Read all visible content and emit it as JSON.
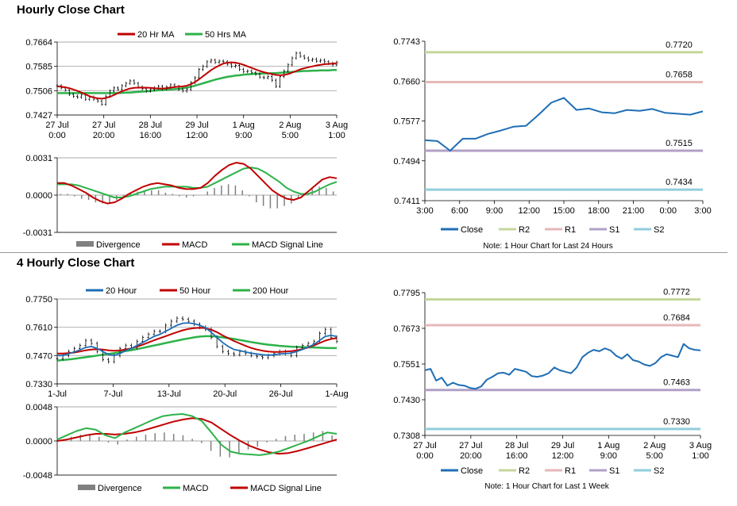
{
  "titles": {
    "hourly": "Hourly Close Chart",
    "four_hourly": "4 Hourly Close Chart"
  },
  "colors": {
    "red": "#c00000",
    "green": "#2db24a",
    "blue": "#1f6eb5",
    "r2": "#c4d79b",
    "r1": "#e6b8b7",
    "s1": "#b1a0c7",
    "s2": "#92cddc",
    "hist": "#808080",
    "grid": "#8c8c8c"
  },
  "chart_data": [
    {
      "id": "hourly_price",
      "type": "line",
      "ylim": [
        0.7427,
        0.7664
      ],
      "y_ticks": [
        "0.7664",
        "0.7585",
        "0.7506",
        "0.7427"
      ],
      "x_ticks": [
        [
          "27 Jul",
          "0:00"
        ],
        [
          "27 Jul",
          "20:00"
        ],
        [
          "28 Jul",
          "16:00"
        ],
        [
          "29 Jul",
          "12:00"
        ],
        [
          "1 Aug",
          "9:00"
        ],
        [
          "2 Aug",
          "5:00"
        ],
        [
          "3 Aug",
          "1:00"
        ]
      ],
      "legend": [
        "20 Hr MA",
        "50 Hrs MA"
      ],
      "series": [
        {
          "name": "Close",
          "values": [
            0.7522,
            0.7515,
            0.7508,
            0.7494,
            0.7488,
            0.7485,
            0.7492,
            0.7478,
            0.7485,
            0.7478,
            0.7472,
            0.7462,
            0.7488,
            0.7505,
            0.7515,
            0.751,
            0.7522,
            0.753,
            0.7538,
            0.753,
            0.7518,
            0.7512,
            0.7505,
            0.751,
            0.7515,
            0.752,
            0.7512,
            0.7518,
            0.7525,
            0.752,
            0.751,
            0.7505,
            0.751,
            0.7532,
            0.7548,
            0.7575,
            0.7585,
            0.76,
            0.7605,
            0.7598,
            0.7602,
            0.76,
            0.7592,
            0.7585,
            0.7588,
            0.7575,
            0.7568,
            0.757,
            0.7565,
            0.756,
            0.755,
            0.7548,
            0.7552,
            0.754,
            0.752,
            0.7552,
            0.757,
            0.759,
            0.7612,
            0.7628,
            0.7618,
            0.7612,
            0.7605,
            0.7608,
            0.7602,
            0.7605,
            0.76,
            0.7595,
            0.759,
            0.7598
          ]
        },
        {
          "name": "20 Hr MA",
          "values": [
            0.752,
            0.7519,
            0.7517,
            0.7514,
            0.751,
            0.7505,
            0.75,
            0.7494,
            0.7488,
            0.7484,
            0.7481,
            0.748,
            0.7482,
            0.7486,
            0.7492,
            0.7498,
            0.7504,
            0.7509,
            0.7513,
            0.7515,
            0.7516,
            0.7516,
            0.7516,
            0.7515,
            0.7514,
            0.7513,
            0.7513,
            0.7514,
            0.7516,
            0.7518,
            0.7519,
            0.752,
            0.7522,
            0.7527,
            0.7534,
            0.7543,
            0.7553,
            0.7563,
            0.7573,
            0.7581,
            0.7588,
            0.7594,
            0.7597,
            0.7598,
            0.7597,
            0.7594,
            0.759,
            0.7585,
            0.758,
            0.7575,
            0.757,
            0.7566,
            0.7563,
            0.756,
            0.7557,
            0.7556,
            0.7557,
            0.756,
            0.7565,
            0.757,
            0.7575,
            0.7579,
            0.7582,
            0.7585,
            0.7588,
            0.759,
            0.7592,
            0.7593,
            0.7594,
            0.7595
          ]
        },
        {
          "name": "50 Hrs MA",
          "values": [
            0.7498,
            0.7498,
            0.7498,
            0.7498,
            0.7498,
            0.7498,
            0.7498,
            0.7498,
            0.7498,
            0.7498,
            0.7498,
            0.7498,
            0.7498,
            0.7498,
            0.7498,
            0.7498,
            0.7499,
            0.75,
            0.75,
            0.7501,
            0.7502,
            0.7503,
            0.7504,
            0.7505,
            0.7506,
            0.7507,
            0.7508,
            0.7509,
            0.751,
            0.7511,
            0.7512,
            0.7514,
            0.7516,
            0.7519,
            0.7522,
            0.7526,
            0.753,
            0.7534,
            0.7538,
            0.7542,
            0.7545,
            0.7548,
            0.7551,
            0.7553,
            0.7555,
            0.7556,
            0.7558,
            0.7559,
            0.756,
            0.7561,
            0.7561,
            0.7562,
            0.7562,
            0.7563,
            0.7563,
            0.7564,
            0.7565,
            0.7566,
            0.7567,
            0.7568,
            0.7569,
            0.757,
            0.757,
            0.7571,
            0.7571,
            0.7572,
            0.7572,
            0.7572,
            0.7573,
            0.7573
          ]
        }
      ]
    },
    {
      "id": "hourly_macd",
      "type": "line",
      "ylim": [
        -0.0031,
        0.0031
      ],
      "y_ticks": [
        "0.0031",
        "0.0000",
        "-0.0031"
      ],
      "legend": [
        "Divergence",
        "MACD",
        "MACD Signal Line"
      ],
      "series": [
        {
          "name": "MACD",
          "values": [
            0.001,
            0.001,
            0.0008,
            0.0005,
            0.0002,
            -0.0002,
            -0.0005,
            -0.0007,
            -0.0006,
            -0.0003,
            0.0001,
            0.0004,
            0.0007,
            0.0009,
            0.001,
            0.0009,
            0.0008,
            0.0006,
            0.0005,
            0.0005,
            0.0006,
            0.001,
            0.0016,
            0.0021,
            0.0025,
            0.0027,
            0.0026,
            0.0022,
            0.0016,
            0.001,
            0.0004,
            0.0,
            -0.0003,
            -0.0004,
            -0.0002,
            0.0003,
            0.0008,
            0.0013,
            0.0015,
            0.0014
          ]
        },
        {
          "name": "MACD Signal Line",
          "values": [
            0.0009,
            0.0009,
            0.0009,
            0.0008,
            0.0006,
            0.0004,
            0.0002,
            0.0,
            -0.0002,
            -0.0002,
            -0.0001,
            0.0001,
            0.0003,
            0.0005,
            0.0006,
            0.0007,
            0.0007,
            0.0007,
            0.0007,
            0.0006,
            0.0006,
            0.0007,
            0.001,
            0.0013,
            0.0016,
            0.0019,
            0.0022,
            0.0023,
            0.0022,
            0.0019,
            0.0015,
            0.0011,
            0.0006,
            0.0003,
            0.0001,
            0.0001,
            0.0003,
            0.0006,
            0.0009,
            0.0011
          ]
        },
        {
          "name": "Divergence",
          "values": [
            0.0001,
            0.0001,
            -0.0001,
            -0.0003,
            -0.0004,
            -0.0006,
            -0.0007,
            -0.0007,
            -0.0004,
            -0.0001,
            0.0002,
            0.0003,
            0.0004,
            0.0004,
            0.0004,
            0.0002,
            0.0001,
            -0.0001,
            -0.0002,
            -0.0001,
            0.0,
            0.0003,
            0.0006,
            0.0008,
            0.0009,
            0.0008,
            0.0004,
            -0.0001,
            -0.0006,
            -0.0009,
            -0.0011,
            -0.0011,
            -0.0009,
            -0.0007,
            -0.0003,
            0.0002,
            0.0005,
            0.0007,
            0.0006,
            0.0003
          ]
        }
      ]
    },
    {
      "id": "hourly_levels",
      "type": "line",
      "ylim": [
        0.7411,
        0.7743
      ],
      "y_ticks": [
        "0.7743",
        "0.7660",
        "0.7577",
        "0.7494",
        "0.7411"
      ],
      "x_ticks": [
        "3:00",
        "6:00",
        "9:00",
        "12:00",
        "15:00",
        "18:00",
        "21:00",
        "0:00",
        "3:00"
      ],
      "legend": [
        "Close",
        "R2",
        "R1",
        "S1",
        "S2"
      ],
      "levels": {
        "R2": 0.772,
        "R1": 0.7658,
        "S1": 0.7515,
        "S2": 0.7434
      },
      "level_labels": {
        "R2": "0.7720",
        "R1": "0.7658",
        "S1": "0.7515",
        "S2": "0.7434"
      },
      "note": "Note: 1 Hour Chart for Last 24 Hours",
      "series": [
        {
          "name": "Close",
          "values": [
            0.7537,
            0.7535,
            0.7515,
            0.754,
            0.754,
            0.755,
            0.7557,
            0.7565,
            0.7567,
            0.759,
            0.7615,
            0.7625,
            0.76,
            0.7603,
            0.7595,
            0.7593,
            0.76,
            0.7598,
            0.7602,
            0.7594,
            0.7592,
            0.759,
            0.7597
          ]
        }
      ]
    },
    {
      "id": "four_hourly_price",
      "type": "line",
      "ylim": [
        0.733,
        0.775
      ],
      "y_ticks": [
        "0.7750",
        "0.7610",
        "0.7470",
        "0.7330"
      ],
      "x_ticks": [
        "1-Jul",
        "7-Jul",
        "13-Jul",
        "20-Jul",
        "26-Jul",
        "1-Aug"
      ],
      "legend": [
        "20 Hour",
        "50 Hour",
        "200 Hour"
      ],
      "series": [
        {
          "name": "Close",
          "values": [
            0.7455,
            0.747,
            0.749,
            0.7505,
            0.752,
            0.7545,
            0.753,
            0.749,
            0.745,
            0.744,
            0.747,
            0.7505,
            0.752,
            0.751,
            0.754,
            0.756,
            0.7575,
            0.759,
            0.759,
            0.762,
            0.764,
            0.7655,
            0.765,
            0.764,
            0.7625,
            0.761,
            0.76,
            0.756,
            0.7515,
            0.749,
            0.748,
            0.7475,
            0.749,
            0.748,
            0.747,
            0.7465,
            0.746,
            0.747,
            0.748,
            0.749,
            0.748,
            0.747,
            0.751,
            0.752,
            0.753,
            0.754,
            0.758,
            0.76,
            0.756,
            0.754
          ]
        },
        {
          "name": "20 Hour",
          "values": [
            0.747,
            0.747,
            0.7478,
            0.7488,
            0.7498,
            0.751,
            0.7515,
            0.7505,
            0.749,
            0.7475,
            0.747,
            0.748,
            0.7495,
            0.7505,
            0.752,
            0.7535,
            0.755,
            0.7565,
            0.7575,
            0.759,
            0.7605,
            0.762,
            0.763,
            0.7632,
            0.7628,
            0.762,
            0.7608,
            0.7585,
            0.756,
            0.7535,
            0.7515,
            0.75,
            0.7495,
            0.7488,
            0.7482,
            0.7478,
            0.7474,
            0.7472,
            0.7474,
            0.7478,
            0.748,
            0.7482,
            0.749,
            0.75,
            0.7512,
            0.7525,
            0.7545,
            0.7565,
            0.757,
            0.7565
          ]
        },
        {
          "name": "50 Hour",
          "values": [
            0.748,
            0.748,
            0.7482,
            0.7485,
            0.749,
            0.7496,
            0.75,
            0.7502,
            0.75,
            0.7496,
            0.7494,
            0.7496,
            0.75,
            0.7506,
            0.7514,
            0.7524,
            0.7535,
            0.7546,
            0.7556,
            0.7566,
            0.7576,
            0.7586,
            0.7595,
            0.7602,
            0.7606,
            0.7608,
            0.7606,
            0.7598,
            0.7586,
            0.757,
            0.7556,
            0.7542,
            0.753,
            0.7518,
            0.7508,
            0.75,
            0.7494,
            0.749,
            0.7488,
            0.7488,
            0.749,
            0.7492,
            0.7496,
            0.7502,
            0.751,
            0.752,
            0.7532,
            0.7544,
            0.7552,
            0.7556
          ]
        },
        {
          "name": "200 Hour",
          "values": [
            0.7445,
            0.7448,
            0.7451,
            0.7454,
            0.7458,
            0.7462,
            0.7466,
            0.747,
            0.7474,
            0.7478,
            0.7482,
            0.7487,
            0.7492,
            0.7497,
            0.7502,
            0.7508,
            0.7514,
            0.752,
            0.7526,
            0.7532,
            0.7538,
            0.7544,
            0.755,
            0.7555,
            0.756,
            0.7564,
            0.7566,
            0.7566,
            0.7564,
            0.756,
            0.7556,
            0.7552,
            0.7547,
            0.7542,
            0.7537,
            0.7532,
            0.7528,
            0.7524,
            0.7521,
            0.7518,
            0.7516,
            0.7514,
            0.7513,
            0.7512,
            0.7511,
            0.751,
            0.7509,
            0.7508,
            0.7507,
            0.7507
          ]
        }
      ]
    },
    {
      "id": "four_hourly_macd",
      "type": "line",
      "ylim": [
        -0.0048,
        0.0048
      ],
      "y_ticks": [
        "0.0048",
        "0.0000",
        "-0.0048"
      ],
      "legend": [
        "Divergence",
        "MACD",
        "MACD Signal Line"
      ],
      "series": [
        {
          "name": "MACD",
          "values": [
            0.0002,
            0.0008,
            0.0014,
            0.0018,
            0.0016,
            0.0008,
            0.0004,
            0.0012,
            0.0018,
            0.0024,
            0.003,
            0.0035,
            0.0037,
            0.0038,
            0.0035,
            0.0028,
            0.0012,
            -0.0005,
            -0.0015,
            -0.0018,
            -0.0019,
            -0.002,
            -0.0018,
            -0.0015,
            -0.001,
            -0.0005,
            0.0,
            0.0006,
            0.0012,
            0.001
          ]
        },
        {
          "name": "MACD Signal Line",
          "values": [
            0.0,
            0.0002,
            0.0005,
            0.0008,
            0.001,
            0.001,
            0.0009,
            0.001,
            0.0012,
            0.0015,
            0.0019,
            0.0023,
            0.0027,
            0.003,
            0.0032,
            0.0031,
            0.0026,
            0.0017,
            0.0008,
            0.0,
            -0.0007,
            -0.0012,
            -0.0016,
            -0.0018,
            -0.0017,
            -0.0014,
            -0.001,
            -0.0006,
            -0.0002,
            0.0002
          ]
        },
        {
          "name": "Divergence",
          "values": [
            0.0002,
            0.0006,
            0.0009,
            0.001,
            0.0006,
            -0.0002,
            -0.0005,
            0.0002,
            0.0006,
            0.0009,
            0.0011,
            0.0012,
            0.001,
            0.0008,
            0.0003,
            -0.0003,
            -0.0014,
            -0.0022,
            -0.0023,
            -0.0018,
            -0.0012,
            -0.0008,
            -0.0002,
            0.0003,
            0.0007,
            0.0009,
            0.001,
            0.0012,
            0.0014,
            0.0008
          ]
        }
      ]
    },
    {
      "id": "four_hourly_levels",
      "type": "line",
      "ylim": [
        0.7308,
        0.7795
      ],
      "y_ticks": [
        "0.7795",
        "0.7673",
        "0.7551",
        "0.7430",
        "0.7308"
      ],
      "x_ticks": [
        [
          "27 Jul",
          "0:00"
        ],
        [
          "27 Jul",
          "20:00"
        ],
        [
          "28 Jul",
          "16:00"
        ],
        [
          "29 Jul",
          "12:00"
        ],
        [
          "1 Aug",
          "9:00"
        ],
        [
          "2 Aug",
          "5:00"
        ],
        [
          "3 Aug",
          "1:00"
        ]
      ],
      "legend": [
        "Close",
        "R2",
        "R1",
        "S1",
        "S2"
      ],
      "levels": {
        "R2": 0.7772,
        "R1": 0.7684,
        "S1": 0.7463,
        "S2": 0.733
      },
      "level_labels": {
        "R2": "0.7772",
        "R1": "0.7684",
        "S1": "0.7463",
        "S2": "0.7330"
      },
      "note": "Note: 1 Hour Chart for Last 1 Week",
      "series": [
        {
          "name": "Close",
          "values": [
            0.753,
            0.7535,
            0.7495,
            0.7505,
            0.7478,
            0.7488,
            0.748,
            0.7478,
            0.747,
            0.7467,
            0.7475,
            0.7498,
            0.7508,
            0.752,
            0.7522,
            0.7515,
            0.7535,
            0.753,
            0.7525,
            0.751,
            0.7508,
            0.7512,
            0.752,
            0.754,
            0.753,
            0.7525,
            0.752,
            0.754,
            0.7575,
            0.759,
            0.76,
            0.7595,
            0.7605,
            0.7598,
            0.758,
            0.757,
            0.7585,
            0.7565,
            0.756,
            0.755,
            0.7545,
            0.7555,
            0.7575,
            0.7585,
            0.758,
            0.7575,
            0.762,
            0.7605,
            0.76,
            0.7598
          ]
        }
      ]
    }
  ]
}
